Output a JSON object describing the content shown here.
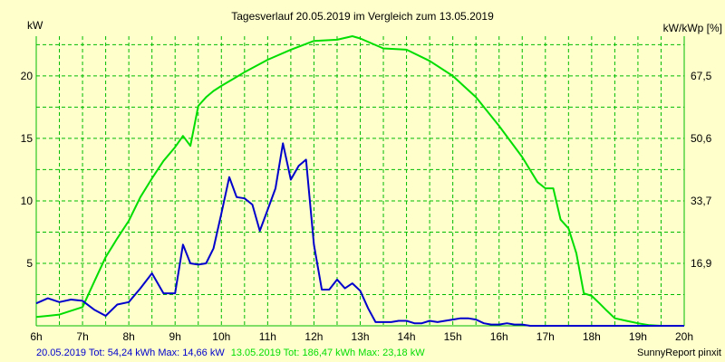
{
  "chart_data": {
    "type": "line",
    "title": "Tagesverlauf 20.05.2019 im Vergleich zum 13.05.2019",
    "ylabel": "kW",
    "y2label": "kW/kWp [%]",
    "xlim": [
      6,
      20
    ],
    "ylim": [
      0,
      23.18
    ],
    "x_ticks": [
      "6h",
      "7h",
      "8h",
      "9h",
      "10h",
      "11h",
      "12h",
      "13h",
      "14h",
      "15h",
      "16h",
      "17h",
      "18h",
      "19h",
      "20h"
    ],
    "y_ticks": [
      5,
      10,
      15,
      20
    ],
    "y2_ticks": [
      "16,9",
      "33,7",
      "50,6",
      "67,5"
    ],
    "grid": true,
    "colors": {
      "background": "#ffffcc",
      "grid": "#00bb00",
      "series_1": "#0000cc",
      "series_2": "#00dd00"
    },
    "series": [
      {
        "name": "20.05.2019",
        "stats": "Tot: 54,24 kWh Max: 14,66 kW",
        "color": "#0000cc",
        "x": [
          6.0,
          6.25,
          6.5,
          6.75,
          7.0,
          7.25,
          7.5,
          7.75,
          8.0,
          8.25,
          8.5,
          8.75,
          9.0,
          9.17,
          9.33,
          9.5,
          9.67,
          9.83,
          10.0,
          10.17,
          10.33,
          10.5,
          10.67,
          10.83,
          11.0,
          11.17,
          11.33,
          11.5,
          11.67,
          11.83,
          12.0,
          12.17,
          12.33,
          12.5,
          12.67,
          12.83,
          13.0,
          13.17,
          13.33,
          13.5,
          13.67,
          13.83,
          14.0,
          14.17,
          14.33,
          14.5,
          14.67,
          14.83,
          15.0,
          15.17,
          15.33,
          15.5,
          15.67,
          15.83,
          16.0,
          16.17,
          16.33,
          16.5,
          16.67,
          16.83,
          17.0,
          17.17,
          17.33,
          17.5,
          17.67,
          17.83,
          18.0,
          18.25,
          18.5,
          18.75,
          19.0,
          19.25,
          19.5,
          19.75,
          20.0
        ],
        "y": [
          1.8,
          2.2,
          1.9,
          2.1,
          2.0,
          1.3,
          0.8,
          1.7,
          1.9,
          3.0,
          4.2,
          2.6,
          2.6,
          6.5,
          5.0,
          4.9,
          5.0,
          6.2,
          9.0,
          11.9,
          10.3,
          10.2,
          9.7,
          7.6,
          9.3,
          11.0,
          14.6,
          11.7,
          12.8,
          13.3,
          6.5,
          2.9,
          2.9,
          3.7,
          3.0,
          3.4,
          2.8,
          1.4,
          0.3,
          0.3,
          0.3,
          0.4,
          0.4,
          0.2,
          0.2,
          0.4,
          0.3,
          0.4,
          0.5,
          0.6,
          0.6,
          0.5,
          0.2,
          0.1,
          0.1,
          0.2,
          0.1,
          0.1,
          0.0,
          0.0,
          0.0,
          0.0,
          0.0,
          0.0,
          0.0,
          0.0,
          0.0,
          0.0,
          0.0,
          0.0,
          0.0,
          0.0,
          0.0,
          0.0,
          0.0
        ]
      },
      {
        "name": "13.05.2019",
        "stats": "Tot: 186,47 kWh Max: 23,18 kW",
        "color": "#00dd00",
        "x": [
          6.0,
          6.25,
          6.5,
          6.75,
          7.0,
          7.25,
          7.5,
          7.75,
          8.0,
          8.25,
          8.5,
          8.75,
          9.0,
          9.17,
          9.33,
          9.5,
          9.67,
          9.83,
          10.0,
          10.5,
          11.0,
          11.5,
          12.0,
          12.5,
          12.83,
          13.0,
          13.5,
          14.0,
          14.5,
          15.0,
          15.5,
          16.0,
          16.5,
          16.83,
          17.0,
          17.17,
          17.33,
          17.5,
          17.67,
          17.83,
          18.0,
          18.17,
          18.33,
          18.5,
          18.75,
          19.0,
          19.25,
          19.5,
          19.75,
          20.0
        ],
        "y": [
          0.7,
          0.8,
          0.9,
          1.2,
          1.5,
          3.5,
          5.5,
          7.0,
          8.4,
          10.3,
          11.8,
          13.2,
          14.3,
          15.2,
          14.4,
          17.6,
          18.3,
          18.8,
          19.2,
          20.3,
          21.3,
          22.1,
          22.8,
          22.9,
          23.18,
          23.0,
          22.2,
          22.1,
          21.2,
          20.0,
          18.3,
          16.0,
          13.5,
          11.5,
          11.0,
          11.0,
          8.5,
          7.8,
          5.8,
          2.6,
          2.4,
          1.8,
          1.2,
          0.6,
          0.4,
          0.2,
          0.05,
          0.0,
          0.0,
          0.0
        ]
      }
    ],
    "credit": "SunnyReport pinxit"
  }
}
